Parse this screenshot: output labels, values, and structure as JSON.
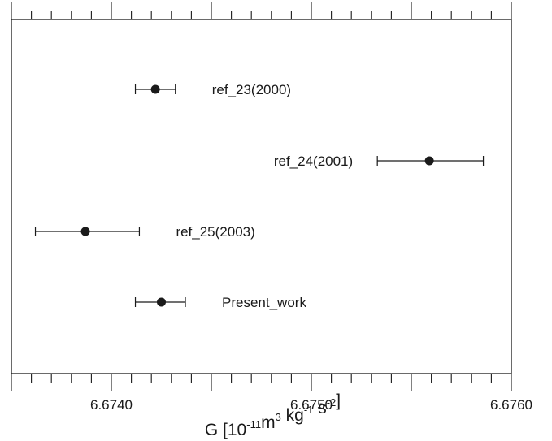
{
  "chart_data": {
    "type": "scatter",
    "title": "",
    "xlabel": {
      "parts": [
        {
          "text": "G [10",
          "sup": false
        },
        {
          "text": "-11",
          "sup": true
        },
        {
          "text": "m",
          "sup": false
        },
        {
          "text": "3",
          "sup": true
        },
        {
          "text": " kg",
          "sup": false
        },
        {
          "text": "-1",
          "sup": true
        },
        {
          "text": " s",
          "sup": false
        },
        {
          "text": "-2",
          "sup": true
        },
        {
          "text": "]",
          "sup": false
        }
      ]
    },
    "ylabel": "",
    "xlim": [
      6.6735,
      6.676
    ],
    "x_major_ticks": [
      6.6735,
      6.674,
      6.6745,
      6.675,
      6.6755,
      6.676
    ],
    "x_minor_step": 0.0001,
    "x_tick_labels": [
      {
        "value": 6.674,
        "label": "6.6740"
      },
      {
        "value": 6.675,
        "label": "6.6750"
      },
      {
        "value": 6.676,
        "label": "6.6760"
      }
    ],
    "grid": false,
    "points": [
      {
        "label": "ref_23(2000)",
        "value": 6.67422,
        "err_low": 6.67412,
        "err_high": 6.67432,
        "label_side": "right"
      },
      {
        "label": "ref_24(2001)",
        "value": 6.67559,
        "err_low": 6.67533,
        "err_high": 6.67586,
        "label_side": "left"
      },
      {
        "label": "ref_25(2003)",
        "value": 6.67387,
        "err_low": 6.67362,
        "err_high": 6.67414,
        "label_side": "right"
      },
      {
        "label": "Present_work",
        "value": 6.67425,
        "err_low": 6.67412,
        "err_high": 6.67437,
        "label_side": "right"
      }
    ]
  }
}
